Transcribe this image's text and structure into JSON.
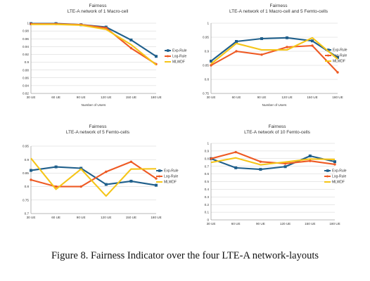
{
  "caption": "Figure 8. Fairness Indicator over the four LTE-A network-layouts",
  "colors": {
    "Exp-Rule": "#1f5f8b",
    "Log-Rule": "#ee5a24",
    "MLWDF": "#f5c518"
  },
  "chart_data": [
    {
      "type": "line",
      "title": "Fairness",
      "subtitle": "LTE-A network of 1 Macro-cell",
      "xlabel": "Number of Users",
      "ylabel": "",
      "categories": [
        "30 UE",
        "60 UE",
        "90 UE",
        "120 UE",
        "150 UE",
        "180 UE"
      ],
      "ylim": [
        0.82,
        1
      ],
      "yticks": [
        0.82,
        0.84,
        0.86,
        0.88,
        0.9,
        0.92,
        0.94,
        0.96,
        0.98,
        1
      ],
      "ytick_labels": [
        "0.82",
        "0.84",
        "0.86",
        "0.88",
        "0.9",
        "0.92",
        "0.94",
        "0.96",
        "0.98",
        "1"
      ],
      "legend": "right",
      "grid": true,
      "series": [
        {
          "name": "Exp-Rule",
          "values": [
            0.999,
            0.999,
            0.996,
            0.99,
            0.957,
            0.915
          ]
        },
        {
          "name": "Log-Rule",
          "values": [
            0.998,
            0.998,
            0.996,
            0.988,
            0.936,
            0.895
          ]
        },
        {
          "name": "MLWDF",
          "values": [
            0.997,
            0.997,
            0.995,
            0.984,
            0.945,
            0.893
          ]
        }
      ]
    },
    {
      "type": "line",
      "title": "Fairness",
      "subtitle": "LTE-A network of 1 Macro-cell and 5 Femto-cells",
      "xlabel": "Number of Users",
      "ylabel": "",
      "categories": [
        "30 UE",
        "60 UE",
        "90 UE",
        "120 UE",
        "150 UE",
        "180 UE"
      ],
      "ylim": [
        0.75,
        1
      ],
      "yticks": [
        0.75,
        0.8,
        0.85,
        0.9,
        0.95,
        1
      ],
      "ytick_labels": [
        "0.75",
        "0.8",
        "0.85",
        "0.9",
        "0.95",
        "1"
      ],
      "legend": "right",
      "grid": true,
      "series": [
        {
          "name": "Exp-Rule",
          "values": [
            0.865,
            0.935,
            0.945,
            0.948,
            0.937,
            0.878
          ]
        },
        {
          "name": "Log-Rule",
          "values": [
            0.85,
            0.9,
            0.888,
            0.915,
            0.92,
            0.825
          ]
        },
        {
          "name": "MLWDF",
          "values": [
            0.855,
            0.928,
            0.905,
            0.905,
            0.948,
            0.872
          ]
        }
      ]
    },
    {
      "type": "line",
      "title": "Fairness",
      "subtitle": "LTE-A network of 5 Femto-cells",
      "xlabel": "",
      "ylabel": "",
      "categories": [
        "30 UE",
        "60 UE",
        "90 UE",
        "120 UE",
        "150 UE",
        "180 UE"
      ],
      "ylim": [
        0.7,
        0.95
      ],
      "yticks": [
        0.7,
        0.75,
        0.8,
        0.85,
        0.9,
        0.95
      ],
      "ytick_labels": [
        "0.7",
        "0.75",
        "0.8",
        "0.85",
        "0.9",
        "0.95"
      ],
      "legend": "right",
      "grid": true,
      "series": [
        {
          "name": "Exp-Rule",
          "values": [
            0.86,
            0.873,
            0.868,
            0.808,
            0.82,
            0.805
          ]
        },
        {
          "name": "Log-Rule",
          "values": [
            0.825,
            0.8,
            0.8,
            0.855,
            0.892,
            0.83
          ]
        },
        {
          "name": "MLWDF",
          "values": [
            0.905,
            0.79,
            0.865,
            0.765,
            0.865,
            0.866
          ]
        }
      ]
    },
    {
      "type": "line",
      "title": "Fairness",
      "subtitle": "LTE-A network of 10 Femto-cells",
      "xlabel": "",
      "ylabel": "",
      "categories": [
        "30 UE",
        "60 UE",
        "90 UE",
        "120 UE",
        "150 UE",
        "180 UE"
      ],
      "ylim": [
        0,
        1
      ],
      "yticks": [
        0,
        0.1,
        0.2,
        0.3,
        0.4,
        0.5,
        0.6,
        0.7,
        0.8,
        0.9,
        1
      ],
      "ytick_labels": [
        "0",
        "0.1",
        "0.2",
        "0.3",
        "0.4",
        "0.5",
        "0.6",
        "0.7",
        "0.8",
        "0.9",
        "1"
      ],
      "legend": "right",
      "grid": true,
      "series": [
        {
          "name": "Exp-Rule",
          "values": [
            0.8,
            0.68,
            0.66,
            0.695,
            0.835,
            0.76
          ]
        },
        {
          "name": "Log-Rule",
          "values": [
            0.8,
            0.885,
            0.76,
            0.735,
            0.77,
            0.725
          ]
        },
        {
          "name": "MLWDF",
          "values": [
            0.75,
            0.81,
            0.72,
            0.755,
            0.795,
            0.79
          ]
        }
      ]
    }
  ]
}
